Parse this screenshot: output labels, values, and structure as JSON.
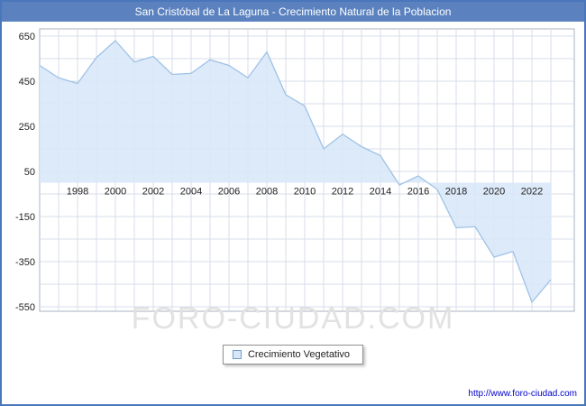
{
  "header": {
    "title": "San Cristóbal de La Laguna - Crecimiento Natural de la Poblacion"
  },
  "watermark": "FORO-CIUDAD.COM",
  "legend": {
    "label": "Crecimiento Vegetativo"
  },
  "footer": {
    "url": "http://www.foro-ciudad.com"
  },
  "chart_data": {
    "type": "area",
    "title": "San Cristóbal de La Laguna - Crecimiento Natural de la Poblacion",
    "x": [
      1996,
      1997,
      1998,
      1999,
      2000,
      2001,
      2002,
      2003,
      2004,
      2005,
      2006,
      2007,
      2008,
      2009,
      2010,
      2011,
      2012,
      2013,
      2014,
      2015,
      2016,
      2017,
      2018,
      2019,
      2020,
      2021,
      2022,
      2023
    ],
    "series": [
      {
        "name": "Crecimiento Vegetativo",
        "values": [
          520,
          465,
          440,
          555,
          630,
          535,
          560,
          480,
          485,
          545,
          520,
          465,
          580,
          390,
          340,
          150,
          215,
          160,
          120,
          -10,
          30,
          -30,
          -200,
          -195,
          -330,
          -305,
          -530,
          -430
        ]
      }
    ],
    "ylim": [
      -550,
      650
    ],
    "yticks": [
      650,
      450,
      250,
      50,
      -150,
      -350,
      -550
    ],
    "xticks": [
      1998,
      2000,
      2002,
      2004,
      2006,
      2008,
      2010,
      2012,
      2014,
      2016,
      2018,
      2020,
      2022
    ],
    "grid": true,
    "baseline": 0,
    "legend_position": "bottom",
    "colors": {
      "fill": "#d9e8f8",
      "line": "#9fc2e6",
      "grid": "#d7dee9",
      "plot_border": "#a8b2bf",
      "axis_text": "#222222",
      "titlebar": "#5b82bf"
    }
  }
}
